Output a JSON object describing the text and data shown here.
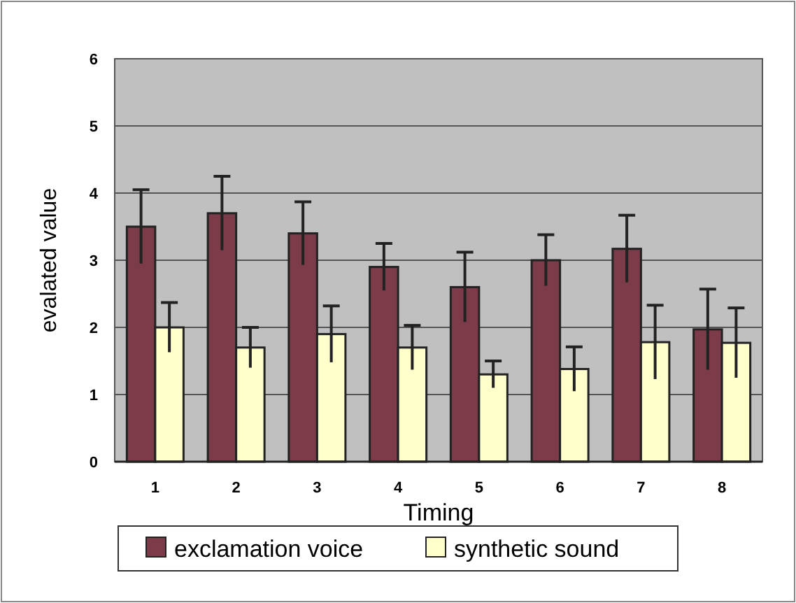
{
  "chart_data": {
    "type": "bar",
    "xlabel": "Timing",
    "ylabel": "evalated value",
    "categories": [
      "1",
      "2",
      "3",
      "4",
      "5",
      "6",
      "7",
      "8"
    ],
    "series": [
      {
        "name": "exclamation voice",
        "color": "#7b3b48",
        "values": [
          3.5,
          3.7,
          3.4,
          2.9,
          2.6,
          3.0,
          3.17,
          1.97
        ],
        "errors": [
          0.55,
          0.55,
          0.47,
          0.35,
          0.52,
          0.38,
          0.5,
          0.6
        ]
      },
      {
        "name": "synthetic sound",
        "color": "#ffffcc",
        "values": [
          2.0,
          1.7,
          1.9,
          1.7,
          1.3,
          1.38,
          1.78,
          1.77
        ],
        "errors": [
          0.37,
          0.3,
          0.42,
          0.33,
          0.2,
          0.33,
          0.55,
          0.52
        ]
      }
    ],
    "ylim": [
      0,
      6
    ],
    "yticks": [
      0,
      1,
      2,
      3,
      4,
      5,
      6
    ],
    "grid": "y",
    "legend": "bottom"
  }
}
